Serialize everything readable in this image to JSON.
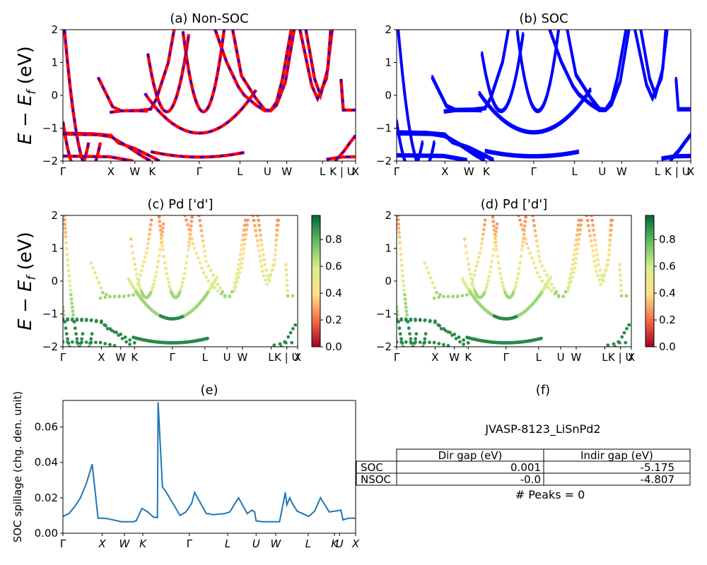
{
  "ticks_k": [
    "Γ",
    "X",
    "W",
    "K",
    "Γ",
    "L",
    "U",
    "W",
    "L",
    "K | U",
    "X"
  ],
  "ticks_k_italic": [
    "Γ",
    "X",
    "W",
    "K",
    "Γ",
    "L",
    "U",
    "W",
    "L",
    "K",
    "U",
    "X"
  ],
  "panels": {
    "a": {
      "title": "(a) Non-SOC",
      "ylabel": "E − E",
      "ylabel_sub": "f",
      "ylabel_unit": " (eV)"
    },
    "b": {
      "title": "(b) SOC"
    },
    "c": {
      "title": "(c)  Pd ['d']",
      "ylabel": "E − E",
      "ylabel_sub": "f",
      "ylabel_unit": " (eV)"
    },
    "d": {
      "title": "(d) Pd ['d']"
    },
    "e": {
      "title": "(e)",
      "ylabel": "SOC spillage (chg. den. unit)"
    },
    "f": {
      "title": "(f)",
      "material": "JVASP-8123_LiSnPd2",
      "peaks": "# Peaks = 0"
    }
  },
  "colorbar_ticks": [
    "0.0",
    "0.2",
    "0.4",
    "0.6",
    "0.8"
  ],
  "table": {
    "headers": [
      "",
      "Dir gap (eV)",
      "Indir gap (eV)"
    ],
    "rows": [
      [
        "SOC",
        "0.001",
        "-5.175"
      ],
      [
        "NSOC",
        "-0.0",
        "-4.807"
      ]
    ]
  },
  "chart_data": [
    {
      "type": "line",
      "panel": "a",
      "title": "(a) Non-SOC",
      "ylabel": "E − Ef (eV)",
      "ylim": [
        -2,
        2
      ],
      "yticks": [
        -2,
        -1,
        0,
        1,
        2
      ],
      "x": [
        0,
        0.164,
        0.246,
        0.305,
        0.466,
        0.605,
        0.699,
        0.765,
        0.887,
        0.954,
        1.0
      ],
      "series": [
        {
          "name": "",
          "values": [
            -1.15,
            -1.22,
            -1.62,
            -1.85,
            -1.15,
            -1.9,
            -2.0,
            -2.0,
            -2.0,
            -1.55,
            -1.2
          ]
        },
        {
          "name": "",
          "values": [
            2.0,
            -0.45,
            -0.47,
            -0.45,
            2.0,
            -0.2,
            -0.47,
            -0.2,
            2.0,
            -0.45,
            -0.45
          ]
        }
      ],
      "colors": {
        "nonsoc": "#ff0000",
        "soc": "#0000ff"
      }
    },
    {
      "type": "line",
      "panel": "b",
      "title": "(b) SOC",
      "ylim": [
        -2,
        2
      ],
      "yticks": [
        -2,
        -1,
        0,
        1,
        2
      ],
      "x": [
        0,
        0.164,
        0.246,
        0.305,
        0.466,
        0.605,
        0.699,
        0.765,
        0.887,
        0.954,
        1.0
      ],
      "series": [
        {
          "name": "",
          "values": [
            -1.15,
            -1.22,
            -1.62,
            -1.85,
            -1.15,
            -1.9,
            -2.0,
            -2.0,
            -2.0,
            -1.55,
            -1.2
          ]
        },
        {
          "name": "",
          "values": [
            2.0,
            -0.45,
            -0.47,
            -0.45,
            2.0,
            -0.2,
            -0.47,
            -0.2,
            2.0,
            -0.45,
            -0.45
          ]
        }
      ],
      "colors": {
        "soc": "#0000ff"
      }
    },
    {
      "type": "scatter",
      "panel": "c",
      "title": "(c)  Pd ['d']",
      "ylim": [
        -2,
        2
      ],
      "colorbar_range": [
        0,
        0.98
      ]
    },
    {
      "type": "scatter",
      "panel": "d",
      "title": "(d) Pd ['d']",
      "ylim": [
        -2,
        2
      ],
      "colorbar_range": [
        0,
        0.98
      ]
    },
    {
      "type": "line",
      "panel": "e",
      "title": "(e)",
      "ylabel": "SOC spillage (chg. den. unit)",
      "ylim": [
        0,
        0.075
      ],
      "yticks": [
        0.0,
        0.02,
        0.04,
        0.06
      ],
      "x": [
        0,
        0.02,
        0.04,
        0.06,
        0.08,
        0.1,
        0.12,
        0.134,
        0.15,
        0.2,
        0.24,
        0.25,
        0.27,
        0.29,
        0.31,
        0.323,
        0.325,
        0.34,
        0.35,
        0.4,
        0.42,
        0.44,
        0.45,
        0.49,
        0.5,
        0.51,
        0.55,
        0.57,
        0.6,
        0.63,
        0.645,
        0.655,
        0.66,
        0.68,
        0.7,
        0.74,
        0.76,
        0.765,
        0.775,
        0.78,
        0.8,
        0.84,
        0.86,
        0.88,
        0.91,
        0.95,
        0.957,
        0.965,
        0.98,
        1.0
      ],
      "values": [
        0.0095,
        0.011,
        0.015,
        0.02,
        0.028,
        0.039,
        0.0085,
        0.0085,
        0.0083,
        0.0065,
        0.0065,
        0.007,
        0.014,
        0.012,
        0.009,
        0.0088,
        0.074,
        0.026,
        0.024,
        0.01,
        0.012,
        0.017,
        0.023,
        0.011,
        0.011,
        0.0105,
        0.011,
        0.012,
        0.02,
        0.011,
        0.013,
        0.012,
        0.007,
        0.0065,
        0.0065,
        0.0065,
        0.023,
        0.016,
        0.02,
        0.018,
        0.0125,
        0.0095,
        0.0125,
        0.02,
        0.012,
        0.013,
        0.0075,
        0.008,
        0.0085,
        0.0085
      ],
      "color": "#1f77b4"
    }
  ]
}
